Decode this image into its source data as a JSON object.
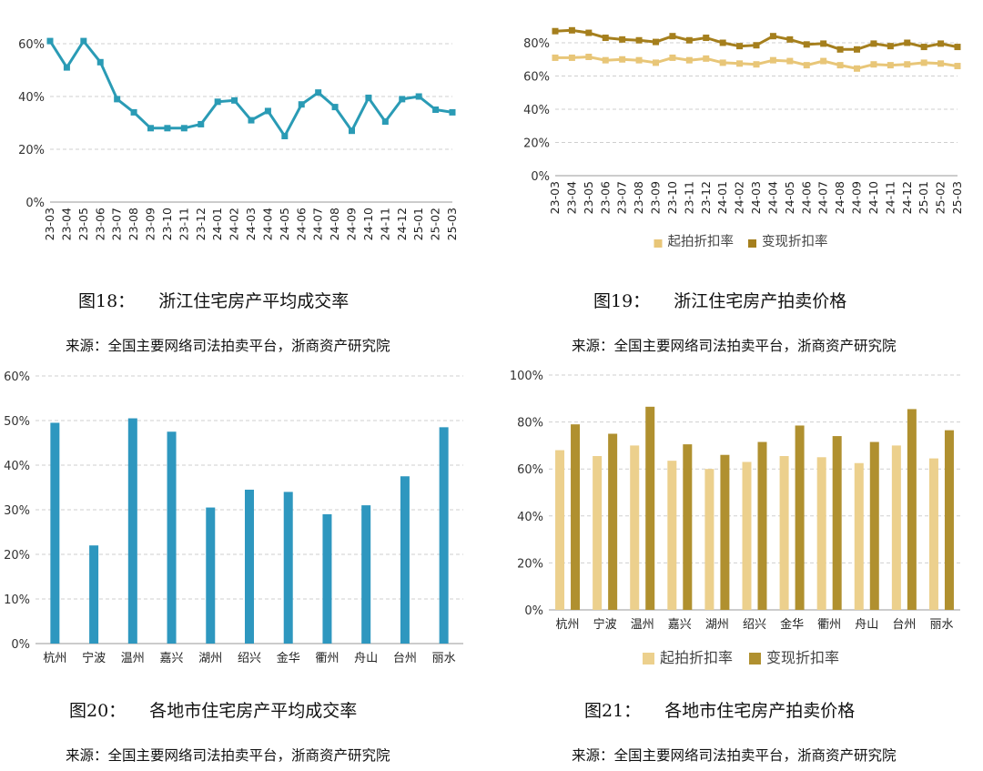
{
  "figures": [
    {
      "number": "图18：",
      "title": "浙江住宅房产平均成交率",
      "source": "来源：全国主要网络司法拍卖平台，浙商资产研究院"
    },
    {
      "number": "图19：",
      "title": "浙江住宅房产拍卖价格",
      "source": "来源：全国主要网络司法拍卖平台，浙商资产研究院"
    },
    {
      "number": "图20：",
      "title": "各地市住宅房产平均成交率",
      "source": "来源：全国主要网络司法拍卖平台，浙商资产研究院"
    },
    {
      "number": "图21：",
      "title": "各地市住宅房产拍卖价格",
      "source": "来源：全国主要网络司法拍卖平台，浙商资产研究院"
    }
  ],
  "chart_data": [
    {
      "type": "line",
      "x": [
        "23-03",
        "23-04",
        "23-05",
        "23-06",
        "23-07",
        "23-08",
        "23-09",
        "23-10",
        "23-11",
        "23-12",
        "24-01",
        "24-02",
        "24-03",
        "24-04",
        "24-05",
        "24-06",
        "24-07",
        "24-08",
        "24-09",
        "24-10",
        "24-11",
        "24-12",
        "25-01",
        "25-02",
        "25-03"
      ],
      "series": [
        {
          "values": [
            61,
            51,
            61,
            53,
            39,
            34,
            28,
            28,
            28,
            29.5,
            38,
            38.5,
            31,
            34.5,
            25,
            37,
            41.5,
            36,
            27,
            39.5,
            30.5,
            39,
            40,
            35,
            34
          ],
          "color": "#2a9bb5"
        }
      ],
      "ylim": [
        0,
        60
      ],
      "yticks": [
        "0%",
        "20%",
        "40%",
        "60%"
      ],
      "grid": true
    },
    {
      "type": "line",
      "x": [
        "23-03",
        "23-04",
        "23-05",
        "23-06",
        "23-07",
        "23-08",
        "23-09",
        "23-10",
        "23-11",
        "23-12",
        "24-01",
        "24-02",
        "24-03",
        "24-04",
        "24-05",
        "24-06",
        "24-07",
        "24-08",
        "24-09",
        "24-10",
        "24-11",
        "24-12",
        "25-01",
        "25-02",
        "25-03"
      ],
      "series": [
        {
          "name": "起拍折扣率",
          "values": [
            71,
            71,
            71.5,
            69.5,
            70,
            69.5,
            68,
            71,
            69.5,
            70.5,
            68,
            67.5,
            67,
            69.5,
            69,
            66.5,
            69,
            66.5,
            64.5,
            67,
            66.5,
            67,
            68,
            67.5,
            66
          ],
          "color": "#e8c678"
        },
        {
          "name": "变现折扣率",
          "values": [
            87,
            87.5,
            86,
            83,
            82,
            81.5,
            80.5,
            84,
            81.5,
            83,
            80,
            78,
            78.5,
            84,
            82,
            79,
            79.5,
            76,
            76,
            79.5,
            78,
            80,
            77.5,
            79.5,
            77.5
          ],
          "color": "#a57f1d"
        }
      ],
      "ylim": [
        0,
        80
      ],
      "yticks": [
        "0%",
        "20%",
        "40%",
        "60%",
        "80%"
      ],
      "legend": "bottom",
      "grid": true
    },
    {
      "type": "bar",
      "categories": [
        "杭州",
        "宁波",
        "温州",
        "嘉兴",
        "湖州",
        "绍兴",
        "金华",
        "衢州",
        "舟山",
        "台州",
        "丽水"
      ],
      "series": [
        {
          "values": [
            49.5,
            22,
            50.5,
            47.5,
            30.5,
            34.5,
            34,
            29,
            31,
            37.5,
            48.5
          ],
          "color": "#2e97bf"
        }
      ],
      "ylim": [
        0,
        60
      ],
      "yticks": [
        "0%",
        "10%",
        "20%",
        "30%",
        "40%",
        "50%",
        "60%"
      ],
      "grid": true
    },
    {
      "type": "bar",
      "categories": [
        "杭州",
        "宁波",
        "温州",
        "嘉兴",
        "湖州",
        "绍兴",
        "金华",
        "衢州",
        "舟山",
        "台州",
        "丽水"
      ],
      "series": [
        {
          "name": "起拍折扣率",
          "values": [
            68,
            65.5,
            70,
            63.5,
            60,
            63,
            65.5,
            65,
            62.5,
            70,
            64.5
          ],
          "color": "#ecd08d"
        },
        {
          "name": "变现折扣率",
          "values": [
            79,
            75,
            86.5,
            70.5,
            66,
            71.5,
            78.5,
            74,
            71.5,
            85.5,
            76.5
          ],
          "color": "#b0902f"
        }
      ],
      "ylim": [
        0,
        100
      ],
      "yticks": [
        "0%",
        "20%",
        "40%",
        "60%",
        "80%",
        "100%"
      ],
      "legend": "bottom",
      "grid": true
    }
  ]
}
